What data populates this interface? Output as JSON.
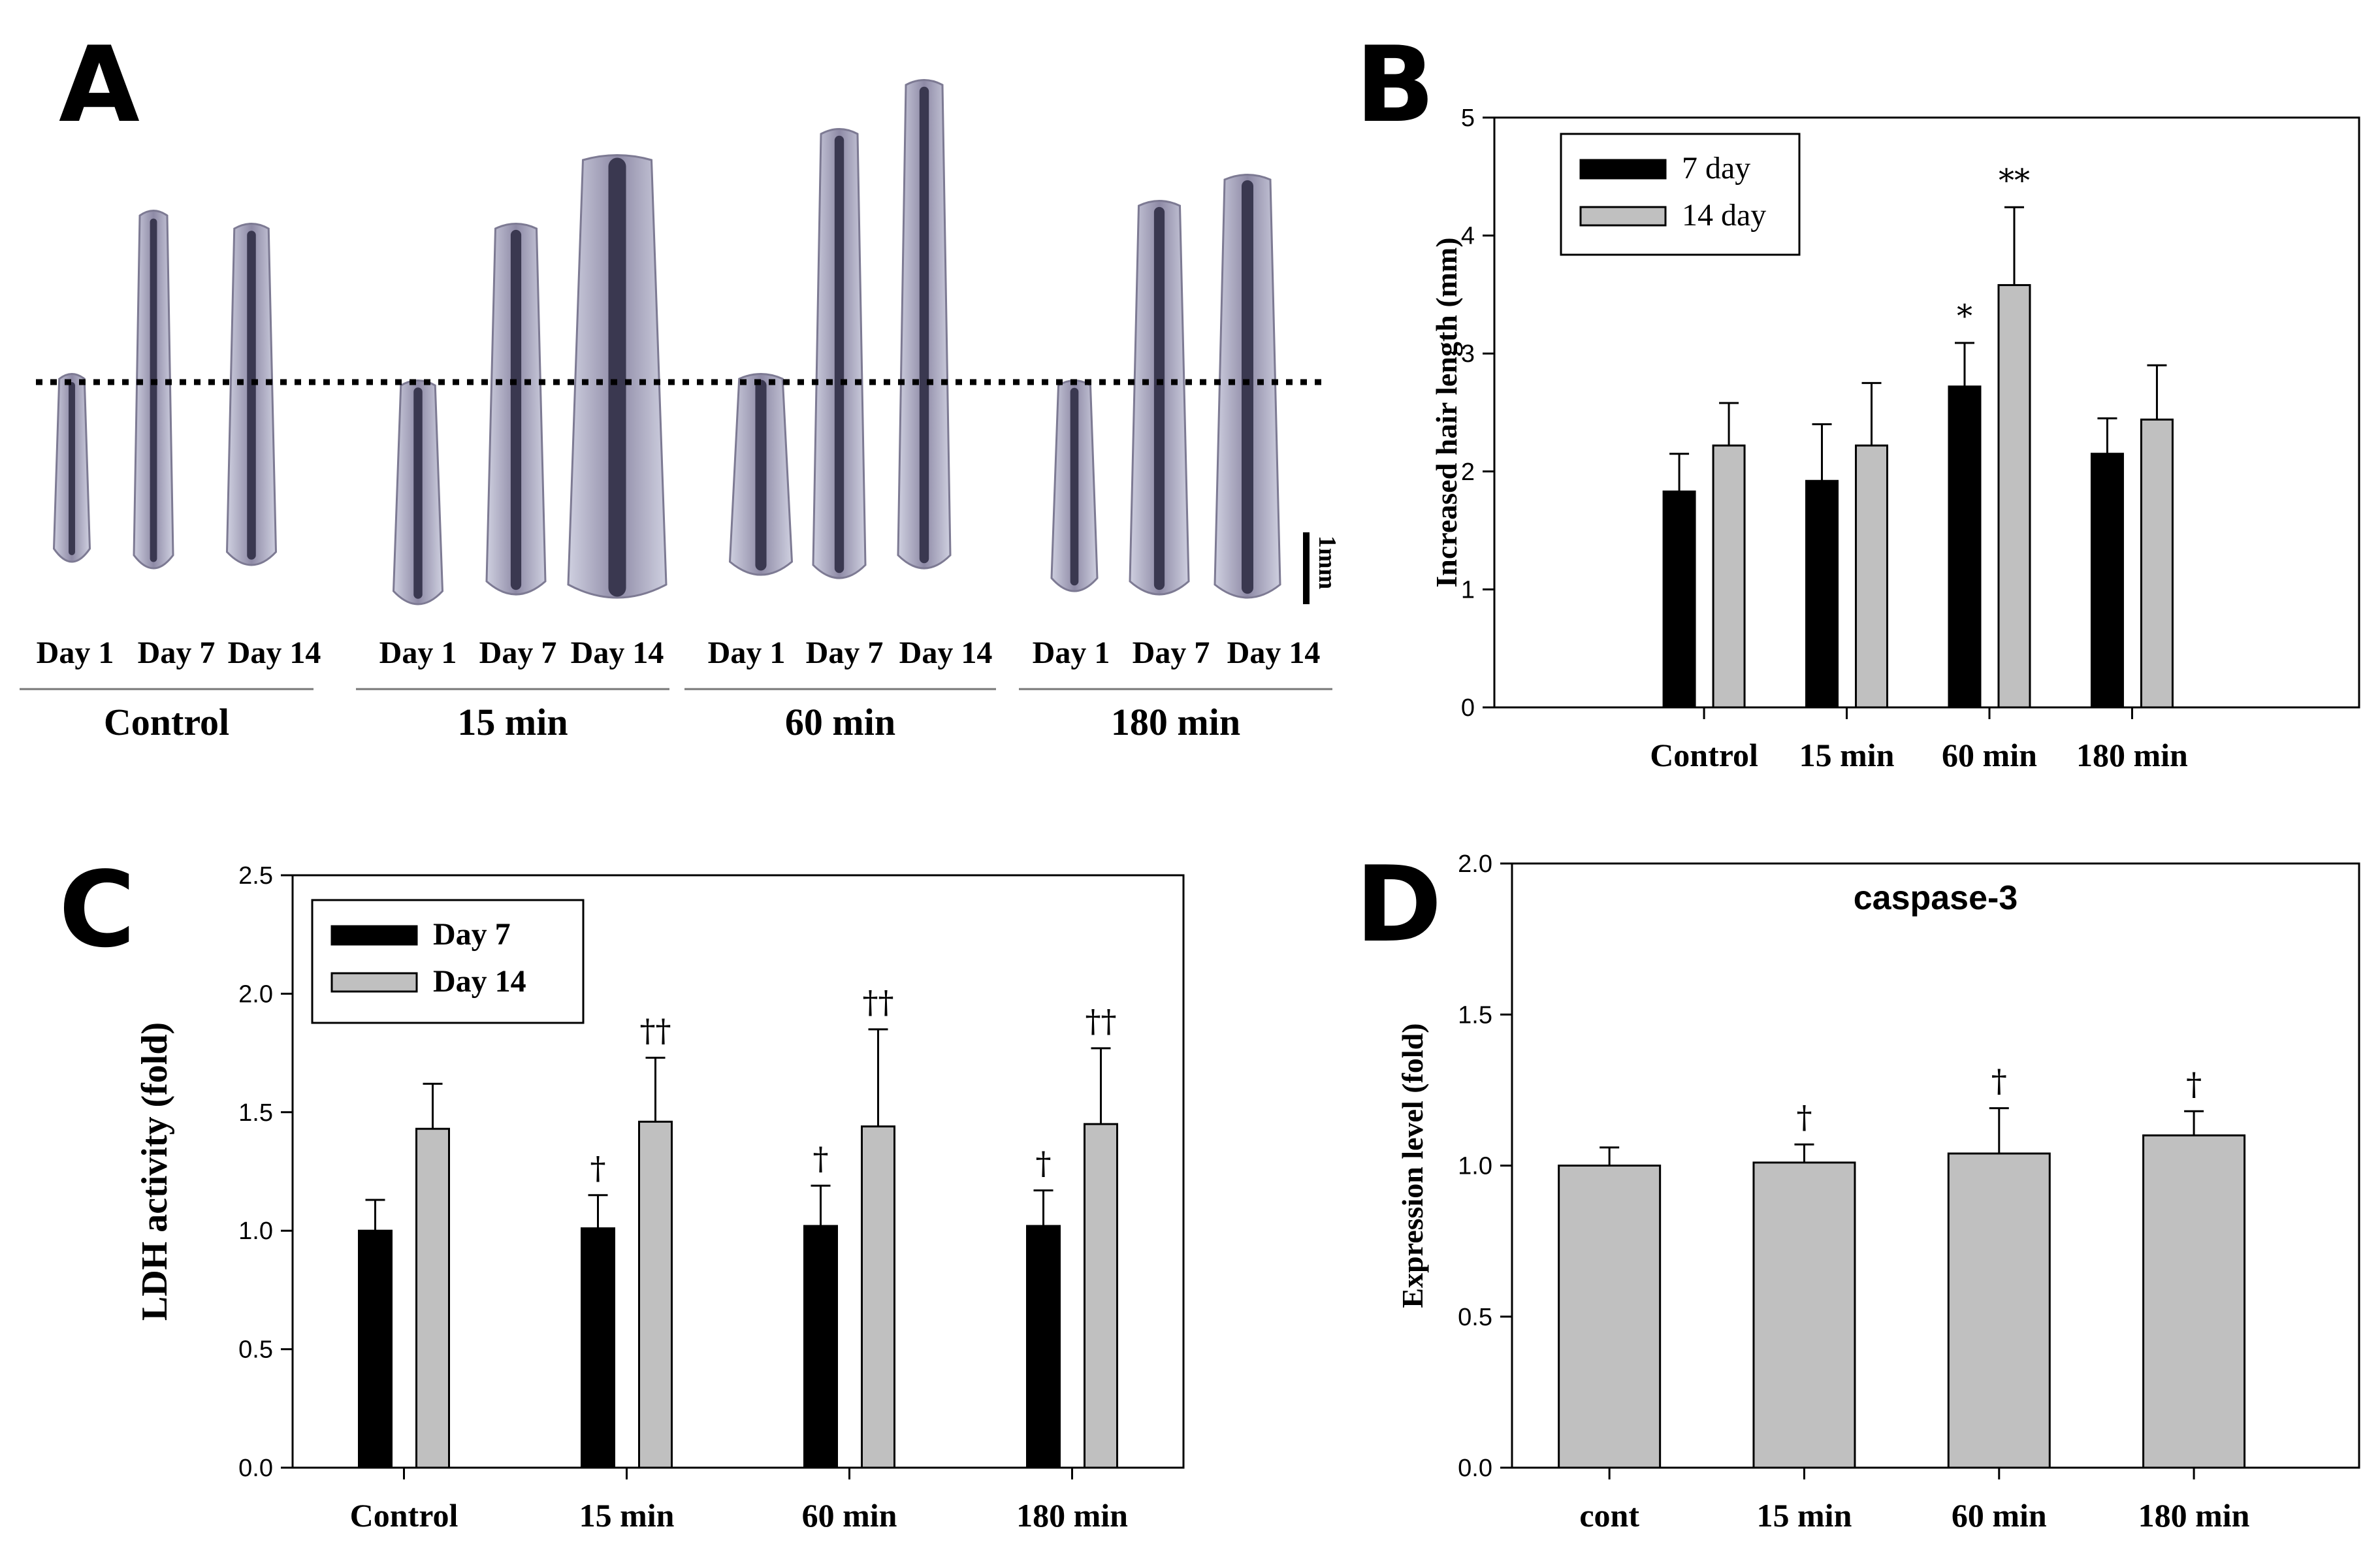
{
  "figure": {
    "panel_letters": [
      "A",
      "B",
      "C",
      "D"
    ]
  },
  "panel_a": {
    "scale_label": "1mm",
    "groups": [
      {
        "name": "Control",
        "days": [
          "Day 1",
          "Day 7",
          "Day 14"
        ]
      },
      {
        "name": "15 min",
        "days": [
          "Day 1",
          "Day 7",
          "Day 14"
        ]
      },
      {
        "name": "60 min",
        "days": [
          "Day 1",
          "Day 7",
          "Day 14"
        ]
      },
      {
        "name": "180 min",
        "days": [
          "Day 1",
          "Day 7",
          "Day 14"
        ]
      }
    ]
  },
  "chart_data": [
    {
      "id": "B",
      "type": "bar",
      "title": "",
      "xlabel": "",
      "ylabel": "Increased hair length (mm)",
      "categories": [
        "Control",
        "15 min",
        "60 min",
        "180 min"
      ],
      "ylim": [
        0,
        5
      ],
      "yticks": [
        "0",
        "1",
        "2",
        "3",
        "4",
        "5"
      ],
      "series": [
        {
          "name": "7 day",
          "color": "#000000",
          "values": [
            1.83,
            1.92,
            2.72,
            2.15
          ],
          "errors": [
            0.32,
            0.48,
            0.37,
            0.3
          ],
          "annotations": [
            "",
            "",
            "*",
            ""
          ]
        },
        {
          "name": "14 day",
          "color": "#c0c0c0",
          "values": [
            2.22,
            2.22,
            3.58,
            2.44
          ],
          "errors": [
            0.36,
            0.53,
            0.66,
            0.46
          ],
          "annotations": [
            "",
            "",
            "**",
            ""
          ]
        }
      ],
      "legend": "top-left"
    },
    {
      "id": "C",
      "type": "bar",
      "title": "",
      "xlabel": "",
      "ylabel": "LDH activity (fold)",
      "categories": [
        "Control",
        "15 min",
        "60 min",
        "180 min"
      ],
      "ylim": [
        0,
        2.5
      ],
      "yticks": [
        "0.0",
        "0.5",
        "1.0",
        "1.5",
        "2.0",
        "2.5"
      ],
      "series": [
        {
          "name": "Day 7",
          "color": "#000000",
          "values": [
            1.0,
            1.01,
            1.02,
            1.02
          ],
          "errors": [
            0.13,
            0.14,
            0.17,
            0.15
          ],
          "annotations": [
            "",
            "†",
            "†",
            "†"
          ]
        },
        {
          "name": "Day 14",
          "color": "#c0c0c0",
          "values": [
            1.43,
            1.46,
            1.44,
            1.45
          ],
          "errors": [
            0.19,
            0.27,
            0.41,
            0.32
          ],
          "annotations": [
            "",
            "††",
            "††",
            "††"
          ]
        }
      ],
      "legend": "top-left"
    },
    {
      "id": "D",
      "type": "bar",
      "title": "caspase-3",
      "xlabel": "",
      "ylabel": "Expression level (fold)",
      "categories": [
        "cont",
        "15 min",
        "60 min",
        "180 min"
      ],
      "ylim": [
        0,
        2.0
      ],
      "yticks": [
        "0.0",
        "0.5",
        "1.0",
        "1.5",
        "2.0"
      ],
      "series": [
        {
          "name": "caspase-3",
          "color": "#c0c0c0",
          "values": [
            1.0,
            1.01,
            1.04,
            1.1
          ],
          "errors": [
            0.06,
            0.06,
            0.15,
            0.08
          ],
          "annotations": [
            "",
            "†",
            "†",
            "†"
          ]
        }
      ],
      "legend": "none"
    }
  ]
}
